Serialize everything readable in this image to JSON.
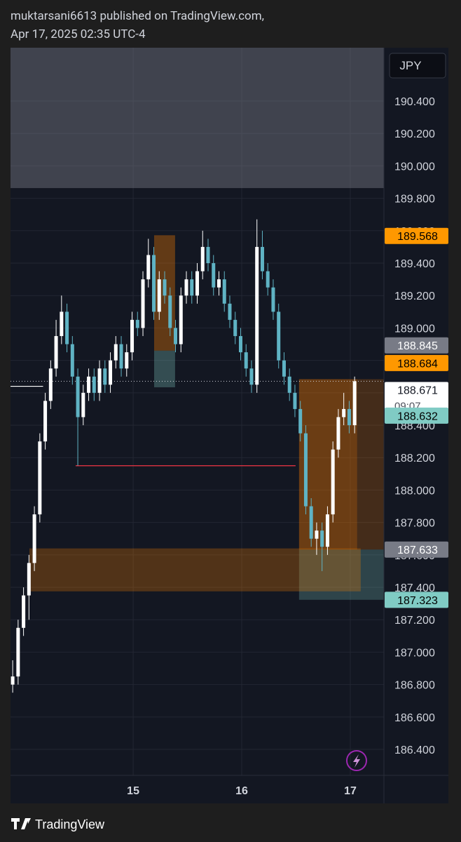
{
  "header": {
    "author_line": "muktarsani6613 published on TradingView.com,",
    "date_line": "Apr 17, 2025 02:35 UTC-4"
  },
  "footer": {
    "brand": "TradingView"
  },
  "chart_data": {
    "type": "candlestick",
    "currency": "JPY",
    "up_color": "#ffffff",
    "down_color": "#5fb3c4",
    "grid": true,
    "xlim": [
      13.87,
      17.31
    ],
    "xticks": [
      15,
      16,
      17
    ],
    "ylim": [
      186.24,
      190.729
    ],
    "yticks": [
      {
        "value": 186.4,
        "label": "186.400"
      },
      {
        "value": 186.6,
        "label": "186.600"
      },
      {
        "value": 186.8,
        "label": "186.800"
      },
      {
        "value": 187.0,
        "label": "187.000"
      },
      {
        "value": 187.2,
        "label": "187.200"
      },
      {
        "value": 187.4,
        "label": "187.400"
      },
      {
        "value": 187.6,
        "label": "187.600"
      },
      {
        "value": 187.8,
        "label": "187.800"
      },
      {
        "value": 188.0,
        "label": "188.000"
      },
      {
        "value": 188.2,
        "label": "188.200"
      },
      {
        "value": 188.4,
        "label": "188.400"
      },
      {
        "value": 188.6,
        "label": "188.600"
      },
      {
        "value": 188.8,
        "label": "188.800"
      },
      {
        "value": 189.0,
        "label": "189.000"
      },
      {
        "value": 189.2,
        "label": "189.200"
      },
      {
        "value": 189.4,
        "label": "189.400"
      },
      {
        "value": 189.6,
        "label": "189.600"
      },
      {
        "value": 189.8,
        "label": "189.800"
      },
      {
        "value": 190.0,
        "label": "190.000"
      },
      {
        "value": 190.2,
        "label": "190.200"
      },
      {
        "value": 190.4,
        "label": "190.400"
      }
    ],
    "x": [
      13.89,
      13.94,
      13.99,
      14.04,
      14.09,
      14.14,
      14.19,
      14.24,
      14.29,
      14.34,
      14.39,
      14.44,
      14.49,
      14.54,
      14.59,
      14.64,
      14.69,
      14.74,
      14.79,
      14.84,
      14.89,
      14.94,
      14.99,
      15.04,
      15.09,
      15.14,
      15.19,
      15.24,
      15.29,
      15.34,
      15.39,
      15.44,
      15.49,
      15.54,
      15.59,
      15.64,
      15.69,
      15.74,
      15.79,
      15.84,
      15.89,
      15.94,
      15.99,
      16.04,
      16.09,
      16.14,
      16.19,
      16.24,
      16.29,
      16.34,
      16.39,
      16.44,
      16.49,
      16.54,
      16.59,
      16.64,
      16.69,
      16.74,
      16.79,
      16.84,
      16.89,
      16.94,
      16.99,
      17.04
    ],
    "ohlc": [
      [
        186.8,
        186.95,
        186.75,
        186.85
      ],
      [
        186.85,
        187.2,
        186.8,
        187.15
      ],
      [
        187.15,
        187.4,
        187.1,
        187.35
      ],
      [
        187.35,
        187.6,
        187.2,
        187.55
      ],
      [
        187.55,
        187.9,
        187.5,
        187.85
      ],
      [
        187.85,
        188.35,
        187.8,
        188.3
      ],
      [
        188.3,
        188.6,
        188.25,
        188.55
      ],
      [
        188.55,
        188.8,
        188.5,
        188.75
      ],
      [
        188.75,
        189.05,
        188.7,
        188.95
      ],
      [
        188.95,
        189.2,
        188.9,
        189.1
      ],
      [
        189.1,
        189.15,
        188.85,
        188.9
      ],
      [
        188.9,
        188.95,
        188.65,
        188.7
      ],
      [
        188.7,
        188.75,
        188.15,
        188.45
      ],
      [
        188.45,
        188.65,
        188.4,
        188.6
      ],
      [
        188.6,
        188.75,
        188.55,
        188.7
      ],
      [
        188.7,
        188.75,
        188.55,
        188.6
      ],
      [
        188.6,
        188.8,
        188.55,
        188.75
      ],
      [
        188.75,
        188.8,
        188.6,
        188.65
      ],
      [
        188.65,
        188.85,
        188.6,
        188.8
      ],
      [
        188.8,
        188.95,
        188.75,
        188.9
      ],
      [
        188.9,
        188.95,
        188.7,
        188.75
      ],
      [
        188.75,
        188.9,
        188.7,
        188.85
      ],
      [
        188.85,
        189.1,
        188.8,
        189.05
      ],
      [
        189.05,
        189.1,
        188.95,
        189.0
      ],
      [
        189.0,
        189.35,
        188.95,
        189.3
      ],
      [
        189.3,
        189.55,
        189.25,
        189.45
      ],
      [
        189.45,
        189.5,
        189.05,
        189.1
      ],
      [
        189.1,
        189.35,
        189.05,
        189.3
      ],
      [
        189.3,
        189.35,
        189.15,
        189.2
      ],
      [
        189.2,
        189.25,
        188.95,
        189.0
      ],
      [
        189.0,
        189.05,
        188.85,
        188.9
      ],
      [
        188.9,
        189.25,
        188.85,
        189.2
      ],
      [
        189.2,
        189.35,
        189.15,
        189.3
      ],
      [
        189.3,
        189.35,
        189.15,
        189.2
      ],
      [
        189.2,
        189.4,
        189.15,
        189.35
      ],
      [
        189.35,
        189.6,
        189.3,
        189.5
      ],
      [
        189.5,
        189.55,
        189.35,
        189.4
      ],
      [
        189.4,
        189.45,
        189.2,
        189.25
      ],
      [
        189.25,
        189.35,
        189.2,
        189.3
      ],
      [
        189.3,
        189.35,
        189.1,
        189.15
      ],
      [
        189.15,
        189.2,
        189.0,
        189.05
      ],
      [
        189.05,
        189.1,
        188.9,
        188.95
      ],
      [
        188.95,
        189.0,
        188.8,
        188.85
      ],
      [
        188.85,
        188.9,
        188.7,
        188.75
      ],
      [
        188.75,
        188.8,
        188.6,
        188.65
      ],
      [
        188.65,
        189.67,
        188.6,
        189.5
      ],
      [
        189.5,
        189.6,
        189.3,
        189.35
      ],
      [
        189.35,
        189.4,
        189.2,
        189.25
      ],
      [
        189.25,
        189.3,
        189.05,
        189.1
      ],
      [
        189.1,
        189.15,
        188.75,
        188.8
      ],
      [
        188.8,
        188.85,
        188.65,
        188.7
      ],
      [
        188.7,
        188.75,
        188.55,
        188.6
      ],
      [
        188.6,
        188.65,
        188.45,
        188.5
      ],
      [
        188.5,
        188.55,
        188.3,
        188.35
      ],
      [
        188.35,
        188.4,
        187.85,
        187.9
      ],
      [
        187.9,
        187.95,
        187.65,
        187.7
      ],
      [
        187.7,
        187.8,
        187.6,
        187.75
      ],
      [
        187.75,
        187.8,
        187.5,
        187.65
      ],
      [
        187.65,
        187.9,
        187.6,
        187.85
      ],
      [
        187.85,
        188.3,
        187.8,
        188.25
      ],
      [
        188.25,
        188.5,
        188.2,
        188.45
      ],
      [
        188.45,
        188.6,
        188.4,
        188.5
      ],
      [
        188.5,
        188.55,
        188.35,
        188.4
      ],
      [
        188.4,
        188.7,
        188.35,
        188.671
      ]
    ],
    "zones": [
      {
        "x": [
          13.87,
          17.31
        ],
        "y": [
          189.863,
          190.729
        ],
        "color": "rgba(120,123,134,0.45)"
      },
      {
        "x": [
          16.528,
          17.31
        ],
        "y": [
          187.633,
          188.684
        ],
        "color": "rgba(245,124,0,0.22)"
      },
      {
        "x": [
          16.528,
          17.063
        ],
        "y": [
          187.633,
          188.684
        ],
        "color": "rgba(245,124,0,0.22)"
      },
      {
        "x": [
          16.528,
          17.31
        ],
        "y": [
          187.323,
          187.633
        ],
        "color": "rgba(128,203,196,0.25)"
      },
      {
        "x": [
          14.044,
          17.096
        ],
        "y": [
          187.375,
          187.64
        ],
        "color": "rgba(245,124,0,0.28)"
      },
      {
        "x": [
          15.193,
          15.386
        ],
        "y": [
          188.86,
          189.572
        ],
        "color": "rgba(245,124,0,0.35)"
      },
      {
        "x": [
          15.193,
          15.386
        ],
        "y": [
          188.634,
          188.86
        ],
        "color": "rgba(128,203,196,0.3)"
      }
    ],
    "lines": [
      {
        "x": [
          14.47,
          16.496
        ],
        "y": 188.15,
        "color": "#f23645"
      },
      {
        "x": [
          13.87,
          14.17
        ],
        "y": 188.64,
        "color": "#ffffff"
      }
    ],
    "last_price": 188.671,
    "countdown": "09:07",
    "price_labels": [
      {
        "value": 189.568,
        "label": "189.568",
        "color": "#ff9800",
        "text_color": "#000000"
      },
      {
        "value": 188.845,
        "label": "188.845",
        "color": "#787b86",
        "text_color": "#ffffff"
      },
      {
        "value": 188.684,
        "label": "188.684",
        "color": "#ff9800",
        "text_color": "#000000"
      },
      {
        "value": 188.671,
        "label": "188.671",
        "color": "#ffffff",
        "text_color": "#131722"
      },
      {
        "value": 188.632,
        "label": "188.632",
        "color": "#80cbc4",
        "text_color": "#000000"
      },
      {
        "value": 187.633,
        "label": "187.633",
        "color": "#787b86",
        "text_color": "#ffffff"
      },
      {
        "value": 187.323,
        "label": "187.323",
        "color": "#80cbc4",
        "text_color": "#000000"
      }
    ]
  }
}
